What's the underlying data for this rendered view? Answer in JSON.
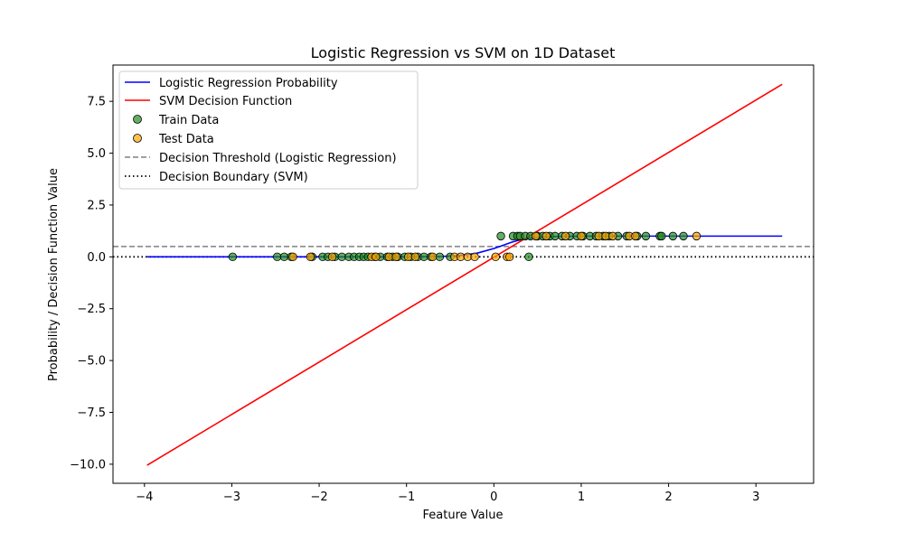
{
  "chart_data": {
    "type": "line",
    "title": "Logistic Regression vs SVM on 1D Dataset",
    "xlabel": "Feature Value",
    "ylabel": "Probability / Decision Function Value",
    "xlim": [
      -4.36,
      3.66
    ],
    "ylim": [
      -10.92,
      9.25
    ],
    "x_ticks": [
      -4,
      -3,
      -2,
      -1,
      0,
      1,
      2,
      3
    ],
    "x_tick_labels": [
      "−4",
      "−3",
      "−2",
      "−1",
      "0",
      "1",
      "2",
      "3"
    ],
    "y_ticks": [
      -10,
      -7.5,
      -5,
      -2.5,
      0,
      2.5,
      5,
      7.5
    ],
    "y_tick_labels": [
      "−10.0",
      "−7.5",
      "−5.0",
      "−2.5",
      "0.0",
      "2.5",
      "5.0",
      "7.5"
    ],
    "grid": false,
    "legend_position": "upper left",
    "colors": {
      "logistic": "#0000ff",
      "svm": "#ff0000",
      "train": "#228b22",
      "test": "#ffa500",
      "threshold": "#808080",
      "boundary": "#000000"
    },
    "series": [
      {
        "name": "Logistic Regression Probability",
        "kind": "line",
        "x": [
          -3.97,
          -3.0,
          -2.0,
          -1.5,
          -1.0,
          -0.6,
          -0.4,
          -0.2,
          0.0,
          0.1,
          0.2,
          0.3,
          0.4,
          0.6,
          0.8,
          1.2,
          2.0,
          3.3
        ],
        "y": [
          0.0,
          0.0,
          0.0,
          0.0,
          0.0,
          0.02,
          0.06,
          0.17,
          0.4,
          0.55,
          0.7,
          0.82,
          0.9,
          0.97,
          0.99,
          1.0,
          1.0,
          1.0
        ]
      },
      {
        "name": "SVM Decision Function",
        "kind": "line",
        "x": [
          -3.97,
          3.3
        ],
        "y": [
          -10.05,
          8.32
        ]
      },
      {
        "name": "Train Data",
        "kind": "scatter",
        "x": [
          -2.99,
          -2.48,
          -2.4,
          -2.32,
          -2.08,
          -1.96,
          -1.9,
          -1.82,
          -1.74,
          -1.66,
          -1.6,
          -1.54,
          -1.49,
          -1.44,
          -1.36,
          -1.3,
          -1.22,
          -1.16,
          -1.1,
          -1.02,
          -0.95,
          -0.87,
          -0.8,
          -0.72,
          -0.62,
          -0.5,
          0.4,
          0.08,
          0.22,
          0.27,
          0.3,
          0.36,
          0.42,
          0.5,
          0.56,
          0.64,
          0.7,
          0.78,
          0.87,
          0.95,
          1.02,
          1.1,
          1.17,
          1.25,
          1.32,
          1.42,
          1.52,
          1.64,
          1.74,
          1.9,
          1.92,
          2.05,
          2.17
        ],
        "y": [
          0,
          0,
          0,
          0,
          0,
          0,
          0,
          0,
          0,
          0,
          0,
          0,
          0,
          0,
          0,
          0,
          0,
          0,
          0,
          0,
          0,
          0,
          0,
          0,
          0,
          0,
          0,
          1,
          1,
          1,
          1,
          1,
          1,
          1,
          1,
          1,
          1,
          1,
          1,
          1,
          1,
          1,
          1,
          1,
          1,
          1,
          1,
          1,
          1,
          1,
          1,
          1,
          1
        ]
      },
      {
        "name": "Test Data",
        "kind": "scatter",
        "x": [
          -2.3,
          -2.1,
          -1.85,
          -1.4,
          -1.35,
          -1.2,
          -1.12,
          -0.98,
          -0.9,
          -0.7,
          -0.45,
          -0.38,
          -0.3,
          -0.22,
          0.02,
          0.15,
          0.18,
          0.48,
          0.6,
          0.82,
          1.0,
          1.2,
          1.28,
          1.36,
          1.55,
          1.62,
          2.32
        ],
        "y": [
          0,
          0,
          0,
          0,
          0,
          0,
          0,
          0,
          0,
          0,
          0,
          0,
          0,
          0,
          0,
          0,
          0,
          1,
          1,
          1,
          1,
          1,
          1,
          1,
          1,
          1,
          1
        ]
      },
      {
        "name": "Decision Threshold (Logistic Regression)",
        "kind": "hline",
        "y": 0.5
      },
      {
        "name": "Decision Boundary (SVM)",
        "kind": "hline",
        "y": 0
      }
    ]
  }
}
